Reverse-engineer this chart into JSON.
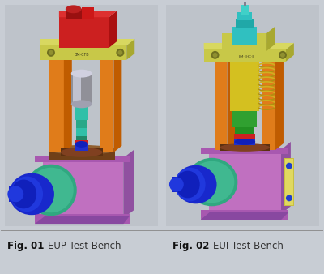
{
  "fig_width": 4.0,
  "fig_height": 3.38,
  "dpi": 100,
  "bg_color": "#c8cdd4",
  "left_panel_bg": "#c0c5cc",
  "right_panel_bg": "#c0c5cc",
  "caption1_bold": "Fig. 01",
  "caption1_text": "EUP Test Bench",
  "caption2_bold": "Fig. 02",
  "caption2_text": "EUI Test Bench",
  "caption_fontsize": 8.5,
  "colors": {
    "orange": "#e07c1a",
    "purple": "#b870b8",
    "purple_dark": "#9060a0",
    "yellow_green": "#d4d460",
    "red": "#cc2020",
    "red_dark": "#991010",
    "silver": "#a8aab8",
    "silver_light": "#c8cad8",
    "teal": "#30c0a8",
    "teal_dark": "#20a890",
    "blue": "#1830cc",
    "blue_light": "#2040dd",
    "green_ring": "#30a878",
    "green_ring_light": "#40c090",
    "yellow": "#d4c020",
    "yellow_light": "#e8d840",
    "green": "#30a030",
    "brown": "#804010",
    "dark_gray": "#404050",
    "light_gray": "#d0d4d8"
  }
}
